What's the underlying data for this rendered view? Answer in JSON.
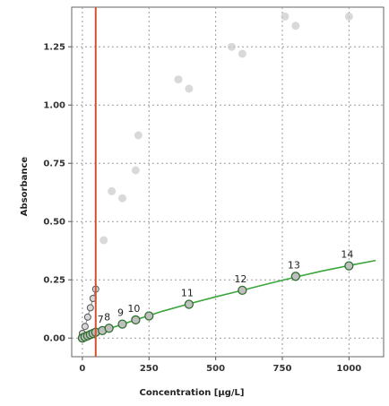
{
  "chart_data": {
    "type": "scatter",
    "xlabel": "Concentration [µg/L]",
    "ylabel": "Absorbance",
    "xlim": [
      -40,
      1130
    ],
    "ylim": [
      -0.08,
      1.42
    ],
    "x_ticks": [
      "0",
      "250",
      "500",
      "750",
      "1000"
    ],
    "x_tick_values": [
      0,
      250,
      500,
      750,
      1000
    ],
    "y_ticks": [
      "0.00",
      "0.25",
      "0.50",
      "0.75",
      "1.00",
      "1.25"
    ],
    "y_tick_values": [
      0,
      0.25,
      0.5,
      0.75,
      1.0,
      1.25
    ],
    "grid": true,
    "reference_line": {
      "x": 50,
      "color": "#d2522e"
    },
    "colors": {
      "fit": "#3aa53a",
      "marker": "#2f6f2f",
      "faded": "#c9c9c9",
      "grid": "#9a9a9a"
    },
    "series": [
      {
        "role": "calibration",
        "points": [
          {
            "x": 0,
            "y": 0.0,
            "label": ""
          },
          {
            "x": 10,
            "y": 0.005,
            "label": ""
          },
          {
            "x": 20,
            "y": 0.01,
            "label": ""
          },
          {
            "x": 30,
            "y": 0.015,
            "label": ""
          },
          {
            "x": 40,
            "y": 0.02,
            "label": ""
          },
          {
            "x": 50,
            "y": 0.025,
            "label": ""
          },
          {
            "x": 75,
            "y": 0.032,
            "label": "7"
          },
          {
            "x": 100,
            "y": 0.042,
            "label": "8"
          },
          {
            "x": 150,
            "y": 0.06,
            "label": "9"
          },
          {
            "x": 200,
            "y": 0.078,
            "label": "10"
          },
          {
            "x": 250,
            "y": 0.095,
            "label": ""
          },
          {
            "x": 400,
            "y": 0.145,
            "label": "11"
          },
          {
            "x": 600,
            "y": 0.205,
            "label": "12"
          },
          {
            "x": 800,
            "y": 0.265,
            "label": "13"
          },
          {
            "x": 1000,
            "y": 0.31,
            "label": "14"
          }
        ]
      },
      {
        "role": "low-range",
        "points": [
          {
            "x": 0,
            "y": 0.02
          },
          {
            "x": 10,
            "y": 0.05
          },
          {
            "x": 20,
            "y": 0.09
          },
          {
            "x": 30,
            "y": 0.13
          },
          {
            "x": 40,
            "y": 0.17
          },
          {
            "x": 50,
            "y": 0.21
          }
        ]
      },
      {
        "role": "faded",
        "points": [
          {
            "x": 80,
            "y": 0.42
          },
          {
            "x": 110,
            "y": 0.63
          },
          {
            "x": 150,
            "y": 0.6
          },
          {
            "x": 210,
            "y": 0.87
          },
          {
            "x": 200,
            "y": 0.72
          },
          {
            "x": 360,
            "y": 1.11
          },
          {
            "x": 400,
            "y": 1.07
          },
          {
            "x": 560,
            "y": 1.25
          },
          {
            "x": 600,
            "y": 1.22
          },
          {
            "x": 760,
            "y": 1.38
          },
          {
            "x": 800,
            "y": 1.34
          },
          {
            "x": 1000,
            "y": 1.38
          }
        ]
      }
    ],
    "fit_curve": [
      [
        0,
        0.0
      ],
      [
        100,
        0.04
      ],
      [
        200,
        0.078
      ],
      [
        300,
        0.115
      ],
      [
        400,
        0.147
      ],
      [
        500,
        0.177
      ],
      [
        600,
        0.205
      ],
      [
        700,
        0.234
      ],
      [
        800,
        0.262
      ],
      [
        900,
        0.288
      ],
      [
        1000,
        0.311
      ],
      [
        1100,
        0.333
      ]
    ]
  }
}
